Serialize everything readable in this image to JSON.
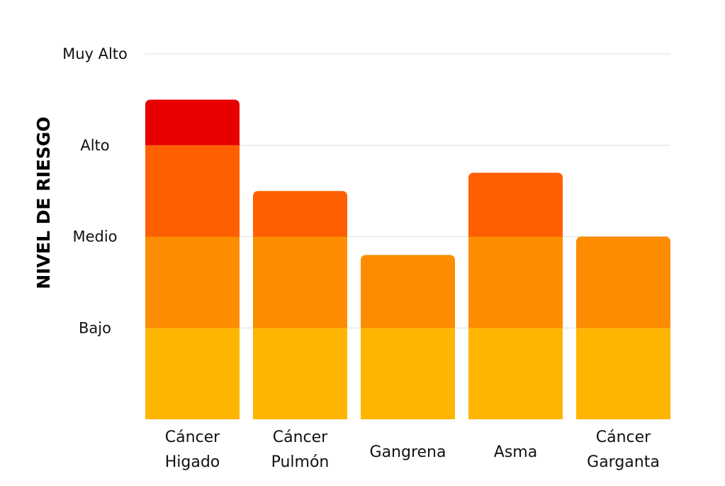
{
  "chart_data": {
    "type": "bar",
    "stacked_bands": true,
    "ylabel": "NIVEL DE RIESGO",
    "ylim": [
      0,
      4
    ],
    "yticks": [
      {
        "value": 1,
        "label": "Bajo"
      },
      {
        "value": 2,
        "label": "Medio"
      },
      {
        "value": 3,
        "label": "Alto"
      },
      {
        "value": 4,
        "label": "Muy Alto"
      }
    ],
    "grid": true,
    "categories": [
      [
        "Cáncer",
        "Higado"
      ],
      [
        "Cáncer",
        "Pulmón"
      ],
      [
        "Gangrena"
      ],
      [
        "Asma"
      ],
      [
        "Cáncer",
        "Garganta"
      ]
    ],
    "values": [
      3.5,
      2.5,
      1.8,
      2.7,
      2.0
    ],
    "band_colors": [
      "#FDB500",
      "#FD8C00",
      "#FE5F00",
      "#E80000"
    ],
    "grid_color": "#DDDDDD"
  }
}
